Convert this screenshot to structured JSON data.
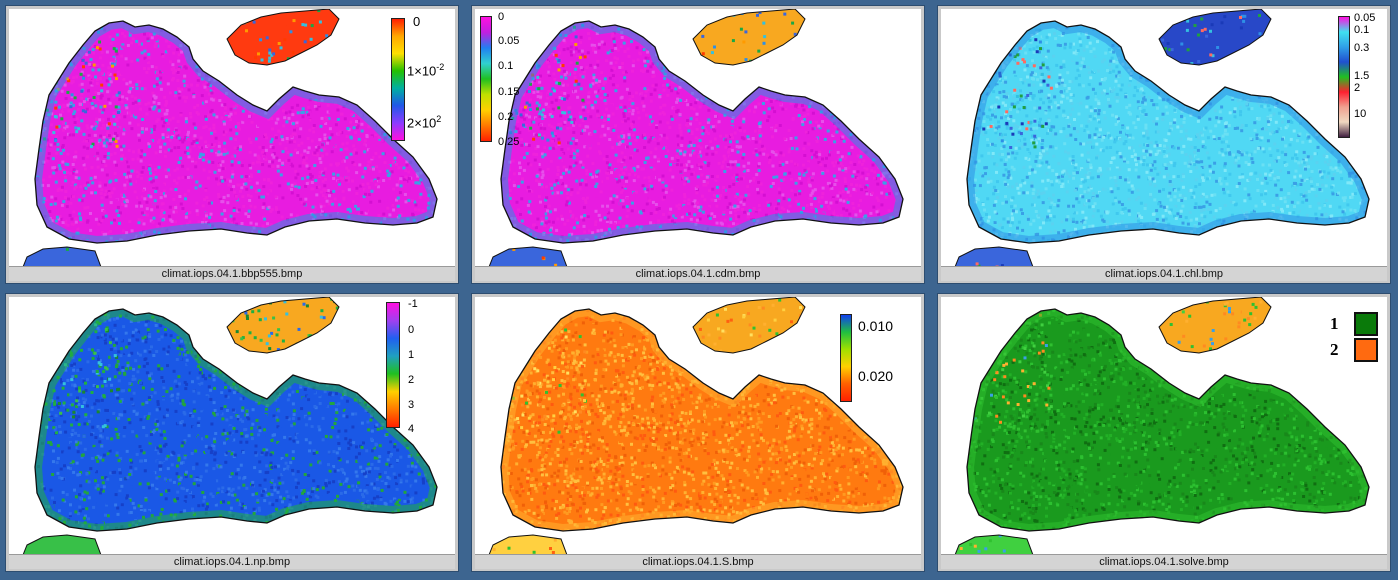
{
  "panels": [
    {
      "caption": "climat.iops.04.1.bbp555.bmp",
      "sea_colors": [
        "#e81ce0",
        "#ee22dc",
        "#d40fd2",
        "#e650ea",
        "#3aa0e6",
        "#ee22dc"
      ],
      "coast_colors": [
        "#2e8fe6",
        "#3a66dc",
        "#34c0e0",
        "#1aa844",
        "#ff9a00",
        "#ff3a00"
      ],
      "land_blob_color": "#ff3a10",
      "legend": {
        "type": "gradient",
        "stops": [
          "#ff1e00",
          "#ffa800",
          "#ffe000",
          "#24c000",
          "#00b0a0",
          "#2058e8",
          "#8a3cff",
          "#ff10e0"
        ],
        "ticks": [
          "0",
          "1×10",
          "-2",
          "2×10",
          "2"
        ]
      }
    },
    {
      "caption": "climat.iops.04.1.cdm.bmp",
      "sea_colors": [
        "#e81ce0",
        "#ee22dc",
        "#d40fd2",
        "#e650ea",
        "#3aa0e6",
        "#ee22dc"
      ],
      "coast_colors": [
        "#2e8fe6",
        "#3a66dc",
        "#34c0e0",
        "#1aa844",
        "#ff9a00",
        "#ff3a00"
      ],
      "land_blob_color": "#f8a820",
      "legend": {
        "type": "gradient",
        "stops": [
          "#ff10e0",
          "#c020e0",
          "#2080f0",
          "#30d0d0",
          "#20c020",
          "#c0e000",
          "#ffd000",
          "#ff7a00",
          "#ff2000"
        ],
        "ticks": [
          "0",
          "0.05",
          "0.1",
          "0.15",
          "0.2",
          "0.25"
        ]
      }
    },
    {
      "caption": "climat.iops.04.1.chl.bmp",
      "sea_colors": [
        "#50d8f4",
        "#6ae0f4",
        "#40c8ee",
        "#3aa0e6",
        "#80e8f8",
        "#5ad2f0"
      ],
      "coast_colors": [
        "#2e8fe6",
        "#3a66dc",
        "#1a3ab8",
        "#34c0e0",
        "#ff6a60",
        "#20a040"
      ],
      "land_blob_color": "#2848c8",
      "legend": {
        "type": "gradient",
        "stops": [
          "#ff10e0",
          "#40e0f0",
          "#30a0e8",
          "#2050d0",
          "#20c020",
          "#ff2030",
          "#f0a090",
          "#f0d8c0",
          "#402040"
        ],
        "ticks": [
          "0.05",
          "0.1",
          "0.3",
          "1.5",
          "2",
          "10"
        ]
      }
    },
    {
      "caption": "climat.iops.04.1.np.bmp",
      "sea_colors": [
        "#1a58e6",
        "#2a6ae8",
        "#1640c8",
        "#3478ec",
        "#22a63c",
        "#1a58e6"
      ],
      "coast_colors": [
        "#20b040",
        "#38c048",
        "#1a8830",
        "#34c0e0",
        "#2a6ae8",
        "#20b040"
      ],
      "land_blob_color": "#f8a820",
      "legend": {
        "type": "gradient",
        "stops": [
          "#ff10e0",
          "#a040f0",
          "#2060f0",
          "#20a0c0",
          "#20c020",
          "#ffd000",
          "#ff7a00",
          "#ff2000"
        ],
        "ticks": [
          "-1",
          "0",
          "1",
          "2",
          "3",
          "4"
        ]
      }
    },
    {
      "caption": "climat.iops.04.1.S.bmp",
      "sea_colors": [
        "#ff7a10",
        "#ff9a20",
        "#ff5a10",
        "#ffb030",
        "#f06008",
        "#ffc040"
      ],
      "coast_colors": [
        "#ffb030",
        "#ffd040",
        "#ff8a20",
        "#30c030",
        "#ff6010",
        "#ffe060"
      ],
      "land_blob_color": "#f8a820",
      "legend": {
        "type": "gradient",
        "stops": [
          "#1040f0",
          "#20c040",
          "#a0e000",
          "#ffd000",
          "#ff6000",
          "#ff2000"
        ],
        "ticks": [
          "0.010",
          "0.020"
        ]
      }
    },
    {
      "caption": "climat.iops.04.1.solve.bmp",
      "sea_colors": [
        "#1a9a1e",
        "#18881a",
        "#22b026",
        "#106e12",
        "#2cc030",
        "#1a9a1e"
      ],
      "coast_colors": [
        "#30c030",
        "#40d040",
        "#ffb030",
        "#ff8a20",
        "#3aa0e6",
        "#30c030"
      ],
      "land_blob_color": "#f8a820",
      "legend": {
        "type": "swatches",
        "items": [
          {
            "label": "1",
            "color": "#0a7a0a"
          },
          {
            "label": "2",
            "color": "#ff6a10"
          }
        ]
      }
    }
  ]
}
